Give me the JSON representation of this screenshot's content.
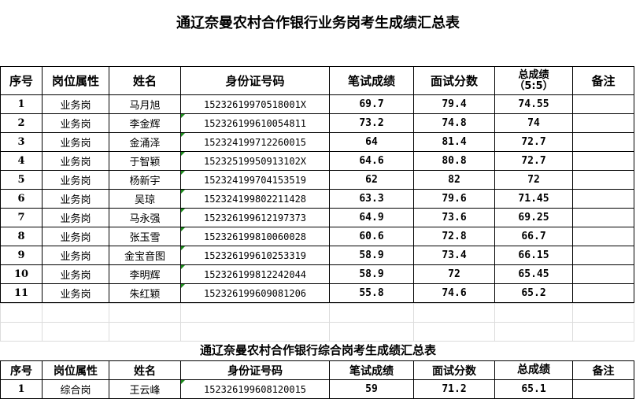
{
  "title1": "通辽奈曼农村合作银行业务岗考生成绩汇总表",
  "title2": "通辽奈曼农村合作银行综合岗考生成绩汇总表",
  "headers": [
    "序号",
    "岗位属性",
    "姓名",
    "身份证号码",
    "笔试成绩",
    "面试分数",
    "总成绩",
    "（5:5）",
    "备注"
  ],
  "table1": [
    [
      "1",
      "业务岗",
      "马月旭",
      "15232619970518001X",
      "69.7",
      "79.4",
      "74.55",
      ""
    ],
    [
      "2",
      "业务岗",
      "李金辉",
      "152326199610054811",
      "73.2",
      "74.8",
      "74",
      ""
    ],
    [
      "3",
      "业务岗",
      "金涌泽",
      "152324199712260015",
      "64",
      "81.4",
      "72.7",
      ""
    ],
    [
      "4",
      "业务岗",
      "于智颖",
      "15232519950913102X",
      "64.6",
      "80.8",
      "72.7",
      ""
    ],
    [
      "5",
      "业务岗",
      "杨新宇",
      "152324199704153519",
      "62",
      "82",
      "72",
      ""
    ],
    [
      "6",
      "业务岗",
      "吴琼",
      "152324199802211428",
      "63.3",
      "79.6",
      "71.45",
      ""
    ],
    [
      "7",
      "业务岗",
      "马永强",
      "152326199612197373",
      "64.9",
      "73.6",
      "69.25",
      ""
    ],
    [
      "8",
      "业务岗",
      "张玉雪",
      "152326199810060028",
      "60.6",
      "72.8",
      "66.7",
      ""
    ],
    [
      "9",
      "业务岗",
      "金宝音图",
      "152326199610253319",
      "58.9",
      "73.4",
      "66.15",
      ""
    ],
    [
      "10",
      "业务岗",
      "李明辉",
      "152326199812242044",
      "58.9",
      "72",
      "65.45",
      ""
    ],
    [
      "11",
      "业务岗",
      "朱红颖",
      "152326199609081206",
      "55.8",
      "74.6",
      "65.2",
      ""
    ]
  ],
  "table2": [
    [
      "1",
      "综合岗",
      "王云峰",
      "152326199608120015",
      "59",
      "71.2",
      "65.1",
      ""
    ]
  ]
}
